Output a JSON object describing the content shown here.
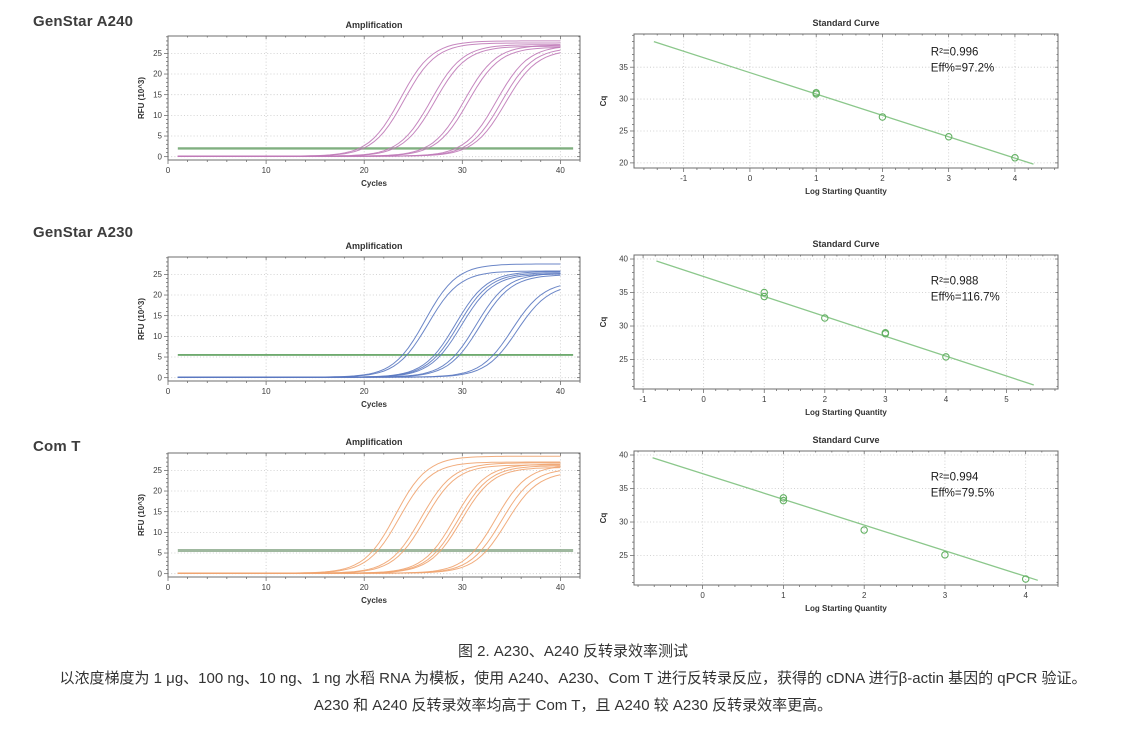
{
  "page": {
    "rows": [
      {
        "label": "GenStar A240"
      },
      {
        "label": "GenStar A230"
      },
      {
        "label": "Com T"
      }
    ],
    "caption": {
      "title": "图 2. A230、A240 反转录效率测试",
      "line1": "以浓度梯度为 1 μg、100 ng、10 ng、1 ng 水稻 RNA 为模板，使用 A240、A230、Com T 进行反转录反应，获得的 cDNA 进行β-actin 基因的 qPCR 验证。",
      "line2": "A230 和 A240 反转录效率均高于 Com T，且 A240 较 A230 反转录效率更高。"
    }
  },
  "chart_data": [
    {
      "id": "amp-a240",
      "type": "line",
      "group": "GenStar A240",
      "title": "Amplification",
      "xlabel": "Cycles",
      "ylabel": "RFU (10^3)",
      "xlim": [
        0,
        42
      ],
      "ylim": [
        -0.8,
        29.2
      ],
      "xticks": [
        0,
        10,
        20,
        30,
        40
      ],
      "yticks": [
        0,
        5,
        10,
        15,
        20,
        25
      ],
      "x_minor_step": 2,
      "y_minor_step": 1,
      "grid": true,
      "curve_color": "#c07ab8",
      "threshold": {
        "value": 2.0,
        "color": "#6aa26a",
        "width": 2.4
      },
      "sigmoids": [
        {
          "mid": 23.7,
          "max": 27.9
        },
        {
          "mid": 24.1,
          "max": 27.4
        },
        {
          "mid": 26.8,
          "max": 27.0
        },
        {
          "mid": 27.2,
          "max": 26.6
        },
        {
          "mid": 30.2,
          "max": 26.9
        },
        {
          "mid": 30.6,
          "max": 26.4
        },
        {
          "mid": 33.5,
          "max": 26.8
        },
        {
          "mid": 34.0,
          "max": 26.3
        },
        {
          "mid": 34.4,
          "max": 25.8
        }
      ]
    },
    {
      "id": "std-a240",
      "type": "scatter",
      "group": "GenStar A240",
      "title": "Standard Curve",
      "xlabel": "Log Starting Quantity",
      "ylabel": "Cq",
      "xlim": [
        -1.75,
        4.65
      ],
      "ylim": [
        19.2,
        40.2
      ],
      "xticks": [
        -1,
        0,
        1,
        2,
        3,
        4
      ],
      "yticks": [
        20,
        25,
        30,
        35
      ],
      "x_minor_step": 0.2,
      "y_minor_step": 1,
      "grid": true,
      "line_color": "#8bc78b",
      "marker_color": "#63b063",
      "fit_line": [
        [
          -1.45,
          39.0
        ],
        [
          4.28,
          19.8
        ]
      ],
      "points": [
        [
          1,
          31.0
        ],
        [
          1,
          30.8
        ],
        [
          2,
          27.2
        ],
        [
          3,
          24.1
        ],
        [
          4,
          20.8
        ]
      ],
      "annotation": {
        "lines": [
          "R²=0.996",
          "Eff%=97.2%"
        ],
        "pos": [
          0.7,
          0.16
        ]
      }
    },
    {
      "id": "amp-a230",
      "type": "line",
      "group": "GenStar A230",
      "title": "Amplification",
      "xlabel": "Cycles",
      "ylabel": "RFU (10^3)",
      "xlim": [
        0,
        42
      ],
      "ylim": [
        -0.8,
        29.2
      ],
      "xticks": [
        0,
        10,
        20,
        30,
        40
      ],
      "yticks": [
        0,
        5,
        10,
        15,
        20,
        25
      ],
      "x_minor_step": 2,
      "y_minor_step": 1,
      "grid": true,
      "curve_color": "#5b79c1",
      "threshold": {
        "value": 5.5,
        "color": "#3e8e3e",
        "width": 1.6
      },
      "sigmoids": [
        {
          "mid": 26.2,
          "max": 27.4
        },
        {
          "mid": 26.5,
          "max": 25.7
        },
        {
          "mid": 29.3,
          "max": 25.6
        },
        {
          "mid": 29.6,
          "max": 25.3
        },
        {
          "mid": 29.9,
          "max": 25.0
        },
        {
          "mid": 31.4,
          "max": 25.2
        },
        {
          "mid": 31.8,
          "max": 24.8
        },
        {
          "mid": 35.1,
          "max": 23.2
        },
        {
          "mid": 35.6,
          "max": 22.6
        }
      ]
    },
    {
      "id": "std-a230",
      "type": "scatter",
      "group": "GenStar A230",
      "title": "Standard Curve",
      "xlabel": "Log Starting Quantity",
      "ylabel": "Cq",
      "xlim": [
        -1.15,
        5.85
      ],
      "ylim": [
        20.6,
        40.6
      ],
      "xticks": [
        -1,
        0,
        1,
        2,
        3,
        4,
        5
      ],
      "yticks": [
        25,
        30,
        35,
        40
      ],
      "x_minor_step": 0.2,
      "y_minor_step": 1,
      "grid": true,
      "line_color": "#8bc78b",
      "marker_color": "#63b063",
      "fit_line": [
        [
          -0.78,
          39.7
        ],
        [
          5.45,
          21.2
        ]
      ],
      "points": [
        [
          1,
          35.0
        ],
        [
          1,
          34.4
        ],
        [
          2,
          31.2
        ],
        [
          3,
          29.0
        ],
        [
          3,
          28.85
        ],
        [
          4,
          25.4
        ]
      ],
      "annotation": {
        "lines": [
          "R²=0.988",
          "Eff%=116.7%"
        ],
        "pos": [
          0.7,
          0.22
        ]
      }
    },
    {
      "id": "amp-comt",
      "type": "line",
      "group": "Com T",
      "title": "Amplification",
      "xlabel": "Cycles",
      "ylabel": "RFU (10^3)",
      "xlim": [
        0,
        42
      ],
      "ylim": [
        -0.8,
        29.2
      ],
      "xticks": [
        0,
        10,
        20,
        30,
        40
      ],
      "yticks": [
        0,
        5,
        10,
        15,
        20,
        25
      ],
      "x_minor_step": 2,
      "y_minor_step": 1,
      "grid": true,
      "curve_color": "#f0a470",
      "threshold": {
        "value": 5.6,
        "color": "#8fac8f",
        "width": 3
      },
      "sigmoids": [
        {
          "mid": 23.2,
          "max": 28.3
        },
        {
          "mid": 23.6,
          "max": 26.9
        },
        {
          "mid": 25.8,
          "max": 26.7
        },
        {
          "mid": 26.2,
          "max": 26.2
        },
        {
          "mid": 29.2,
          "max": 26.4
        },
        {
          "mid": 29.6,
          "max": 26.0
        },
        {
          "mid": 29.9,
          "max": 25.6
        },
        {
          "mid": 33.4,
          "max": 26.2
        },
        {
          "mid": 34.0,
          "max": 25.4
        },
        {
          "mid": 34.5,
          "max": 24.6
        }
      ]
    },
    {
      "id": "std-comt",
      "type": "scatter",
      "group": "Com T",
      "title": "Standard Curve",
      "xlabel": "Log Starting Quantity",
      "ylabel": "Cq",
      "xlim": [
        -0.85,
        4.4
      ],
      "ylim": [
        20.6,
        40.6
      ],
      "xticks": [
        0,
        1,
        2,
        3,
        4
      ],
      "yticks": [
        25,
        30,
        35,
        40
      ],
      "x_minor_step": 0.2,
      "y_minor_step": 1,
      "grid": true,
      "line_color": "#8bc78b",
      "marker_color": "#63b063",
      "fit_line": [
        [
          -0.62,
          39.6
        ],
        [
          4.15,
          21.3
        ]
      ],
      "points": [
        [
          1,
          33.6
        ],
        [
          1,
          33.2
        ],
        [
          2,
          28.8
        ],
        [
          3,
          25.1
        ],
        [
          4,
          21.5
        ]
      ],
      "annotation": {
        "lines": [
          "R²=0.994",
          "Eff%=79.5%"
        ],
        "pos": [
          0.7,
          0.22
        ]
      }
    }
  ]
}
